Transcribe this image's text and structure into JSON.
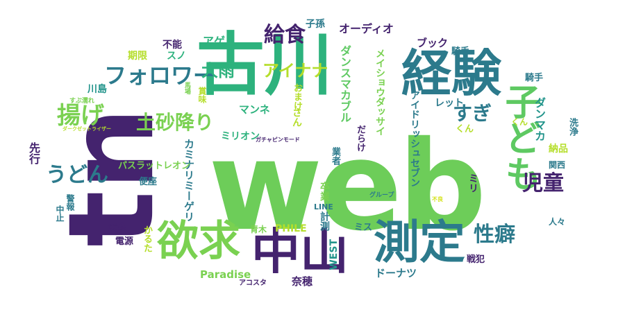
{
  "palette": {
    "dark_purple": "#44236e",
    "purple": "#482374",
    "blue_teal": "#2c7a8c",
    "teal": "#22948b",
    "green_teal": "#2db27d",
    "green": "#5ec962",
    "lime": "#7ad151",
    "yellow_green": "#b5de2b",
    "yellow": "#d4e21a"
  },
  "words": [
    {
      "text": "web",
      "color": "#6dcd59"
    },
    {
      "text": "古川",
      "color": "#2db27d"
    },
    {
      "text": "経験",
      "color": "#2c7a8c"
    },
    {
      "text": "tn",
      "color": "#44236e"
    },
    {
      "text": "中山",
      "color": "#44236e"
    },
    {
      "text": "測定",
      "color": "#2c7a8c"
    },
    {
      "text": "欲求",
      "color": "#7ad151"
    },
    {
      "text": "子ども",
      "color": "#5ec962"
    },
    {
      "text": "児童",
      "color": "#44236e"
    },
    {
      "text": "性癖",
      "color": "#2c7a8c"
    },
    {
      "text": "揚げ",
      "color": "#7ad151"
    },
    {
      "text": "フォロワー",
      "color": "#2c7a8c"
    },
    {
      "text": "給食",
      "color": "#44236e"
    },
    {
      "text": "土砂降り",
      "color": "#7ad151"
    },
    {
      "text": "うどん",
      "color": "#2c7a8c"
    },
    {
      "text": "すぎ",
      "color": "#2c7a8c"
    },
    {
      "text": "大雨",
      "color": "#2db27d"
    },
    {
      "text": "アイナナ",
      "color": "#b5de2b"
    },
    {
      "text": "ダンスマカブル",
      "color": "#5ec962"
    },
    {
      "text": "オーディオ",
      "color": "#44236e"
    },
    {
      "text": "ブック",
      "color": "#44236e"
    },
    {
      "text": "アゲハ",
      "color": "#2db27d"
    },
    {
      "text": "子孫",
      "color": "#2c7a8c"
    },
    {
      "text": "不能",
      "color": "#44236e"
    },
    {
      "text": "スノ",
      "color": "#2db27d"
    },
    {
      "text": "期限",
      "color": "#b5de2b"
    },
    {
      "text": "川島",
      "color": "#22948b"
    },
    {
      "text": "先行",
      "color": "#44236e"
    },
    {
      "text": "騎手",
      "color": "#2c7a8c"
    },
    {
      "text": "温水",
      "color": "#44236e"
    },
    {
      "text": "洗浄",
      "color": "#2c7a8c"
    },
    {
      "text": "納品",
      "color": "#b5de2b"
    },
    {
      "text": "関西",
      "color": "#2c7a8c"
    },
    {
      "text": "人々",
      "color": "#2c7a8c"
    },
    {
      "text": "ミリ",
      "color": "#44236e"
    },
    {
      "text": "マンネ",
      "color": "#2db27d"
    },
    {
      "text": "ミリオン",
      "color": "#2db27d"
    },
    {
      "text": "カミナリミーゲリ",
      "color": "#2c7a8c"
    },
    {
      "text": "パスラットレオン",
      "color": "#7ad151"
    },
    {
      "text": "便座",
      "color": "#2c7a8c"
    },
    {
      "text": "警報",
      "color": "#2c7a8c"
    },
    {
      "text": "中止",
      "color": "#2c7a8c"
    },
    {
      "text": "黄金",
      "color": "#44236e"
    },
    {
      "text": "電源",
      "color": "#44236e"
    },
    {
      "text": "かるた",
      "color": "#b5de2b"
    },
    {
      "text": "青木",
      "color": "#7ad151"
    },
    {
      "text": "PHILE",
      "color": "#b5de2b"
    },
    {
      "text": "計測",
      "color": "#2c7a8c"
    },
    {
      "text": "WEST",
      "color": "#22948b"
    },
    {
      "text": "Paradise",
      "color": "#7ad151"
    },
    {
      "text": "アコスタ",
      "color": "#44236e"
    },
    {
      "text": "奈穂",
      "color": "#44236e"
    },
    {
      "text": "戦犯",
      "color": "#44236e"
    },
    {
      "text": "ドーナツ",
      "color": "#2c7a8c"
    },
    {
      "text": "ミス",
      "color": "#2c7a8c"
    },
    {
      "text": "LINE",
      "color": "#2c7a8c"
    },
    {
      "text": "グループ",
      "color": "#2c7a8c"
    },
    {
      "text": "韓国",
      "color": "#2c7a8c"
    },
    {
      "text": "業者",
      "color": "#2c7a8c"
    },
    {
      "text": "卒業",
      "color": "#7ad151"
    },
    {
      "text": "賞味",
      "color": "#b5de2b"
    },
    {
      "text": "おまけ",
      "color": "#b5de2b"
    },
    {
      "text": "さん",
      "color": "#b5de2b"
    },
    {
      "text": "だらけ",
      "color": "#44236e"
    },
    {
      "text": "レット",
      "color": "#2c7a8c"
    },
    {
      "text": "くん",
      "color": "#b5de2b"
    },
    {
      "text": "メイショウダッサイ",
      "color": "#7ad151"
    },
    {
      "text": "アイドリッシュセブン",
      "color": "#2c7a8c"
    },
    {
      "text": "ダンマカ",
      "color": "#22948b"
    },
    {
      "text": "すぶ濡れ",
      "color": "#7ad151"
    },
    {
      "text": "馬場",
      "color": "#7ad151"
    },
    {
      "text": "ダークゼットライザー",
      "color": "#b5de2b"
    },
    {
      "text": "ガチャピンモード",
      "color": "#44236e"
    },
    {
      "text": "不良",
      "color": "#d4e21a"
    }
  ]
}
